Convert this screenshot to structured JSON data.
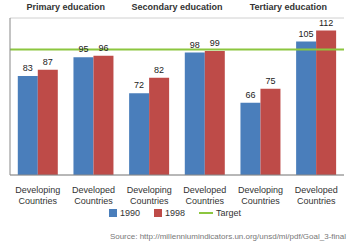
{
  "chart_data": {
    "type": "bar",
    "group_labels": [
      "Primary education",
      "Secondary education",
      "Tertiary education"
    ],
    "categories": [
      "Developing Countries",
      "Developed Countries",
      "Developing Countries",
      "Developed Countries",
      "Developing Countries",
      "Developed Countries"
    ],
    "series": [
      {
        "name": "1990",
        "color": "#4a7ebb",
        "values": [
          83,
          95,
          72,
          98,
          66,
          105
        ]
      },
      {
        "name": "1998",
        "color": "#be4b48",
        "values": [
          87,
          96,
          82,
          99,
          75,
          112
        ]
      }
    ],
    "target": {
      "name": "Target",
      "value": 100,
      "color": "#8cc63f"
    },
    "ylim": [
      20,
      120
    ],
    "yticks": [
      20,
      40,
      60,
      80,
      100,
      120
    ],
    "grid": true,
    "data_labels": true,
    "tick_labels": "x",
    "legend": "bottom",
    "source": "Source: http://millenniumindicators.un.org/unsd/mi/pdf/Goal_3-final"
  }
}
